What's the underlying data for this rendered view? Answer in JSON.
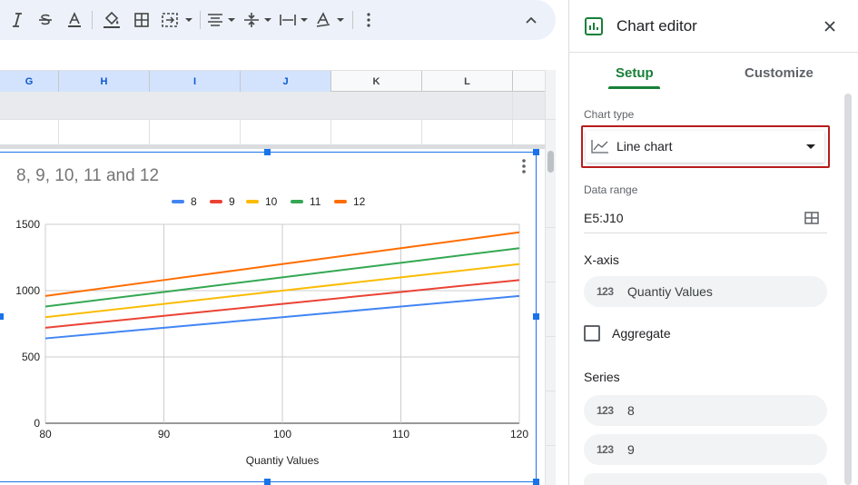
{
  "sheet": {
    "columns": [
      {
        "letter": "G",
        "selected": true
      },
      {
        "letter": "H",
        "selected": true
      },
      {
        "letter": "I",
        "selected": true
      },
      {
        "letter": "J",
        "selected": true
      },
      {
        "letter": "K",
        "selected": false
      },
      {
        "letter": "L",
        "selected": false
      }
    ]
  },
  "chart": {
    "title": "8, 9, 10, 11 and 12"
  },
  "chart_data": {
    "type": "line",
    "title": "8, 9, 10, 11 and 12",
    "xlabel": "Quantiy Values",
    "ylabel": "",
    "x": [
      80,
      90,
      100,
      110,
      120
    ],
    "xlim": [
      80,
      120
    ],
    "ylim": [
      0,
      1500
    ],
    "xticks": [
      "80",
      "90",
      "100",
      "110",
      "120"
    ],
    "yticks": [
      "0",
      "500",
      "1000",
      "1500"
    ],
    "grid": true,
    "legend_position": "top",
    "series": [
      {
        "name": "8",
        "color": "#4285f4",
        "values": [
          640,
          720,
          800,
          880,
          960
        ]
      },
      {
        "name": "9",
        "color": "#ea4335",
        "values": [
          720,
          810,
          900,
          990,
          1080
        ]
      },
      {
        "name": "10",
        "color": "#fbbc04",
        "values": [
          800,
          900,
          1000,
          1100,
          1200
        ]
      },
      {
        "name": "11",
        "color": "#34a853",
        "values": [
          880,
          990,
          1100,
          1210,
          1320
        ]
      },
      {
        "name": "12",
        "color": "#ff6d01",
        "values": [
          960,
          1080,
          1200,
          1320,
          1440
        ]
      }
    ]
  },
  "editor": {
    "title": "Chart editor",
    "tabs": {
      "setup": "Setup",
      "customize": "Customize"
    },
    "chart_type_label": "Chart type",
    "chart_type_value": "Line chart",
    "data_range_label": "Data range",
    "data_range_value": "E5:J10",
    "x_axis_label": "X-axis",
    "x_axis_value": "Quantiy Values",
    "aggregate_label": "Aggregate",
    "series_label": "Series",
    "series_items": [
      "8",
      "9"
    ],
    "chip_icon_text": "123"
  },
  "icons": {
    "toolbar": [
      "italic-icon",
      "strikethrough-icon",
      "text-color-icon",
      "fill-color-icon",
      "borders-icon",
      "merge-cells-icon",
      "horizontal-align-icon",
      "vertical-align-icon",
      "text-wrap-icon",
      "text-rotation-icon",
      "more-vert-icon",
      "collapse-toolbar-icon"
    ],
    "accent": "#188038",
    "selection": "#1a73e8"
  }
}
